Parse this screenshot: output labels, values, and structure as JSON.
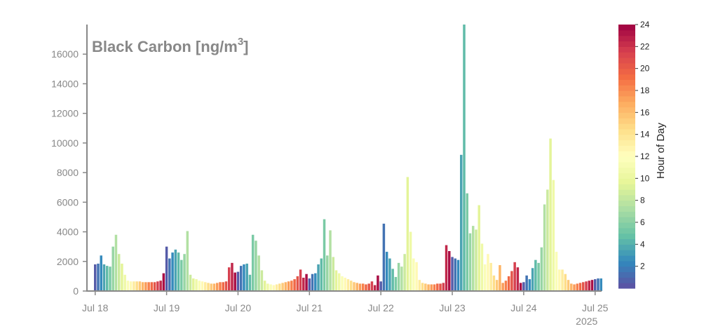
{
  "chart_data": {
    "type": "bar",
    "title": "Black Carbon [ng/m",
    "title_superscript": "3",
    "title_suffix": "]",
    "xlabel": "",
    "ylabel": "",
    "x_tick_labels": [
      "Jul 18",
      "Jul 19",
      "Jul 20",
      "Jul 21",
      "Jul 22",
      "Jul 23",
      "Jul 24",
      "Jul 25"
    ],
    "x_year_label": "2025",
    "x_range": [
      "2025-07-18 00:00",
      "2025-07-25 00:00"
    ],
    "ylim": [
      0,
      18000
    ],
    "y_ticks": [
      0,
      2000,
      4000,
      6000,
      8000,
      10000,
      12000,
      14000,
      16000
    ],
    "grid": false,
    "colorbar": {
      "label": "Hour of Day",
      "range": [
        0,
        24
      ],
      "ticks": [
        2,
        4,
        6,
        8,
        10,
        12,
        14,
        16,
        18,
        20,
        22,
        24
      ],
      "colormap": "Spectral_r"
    },
    "bar_interval_hours": 1,
    "x_start": "2025-07-18 00:00",
    "values": [
      1800,
      1850,
      2400,
      1800,
      1700,
      1650,
      3000,
      3800,
      2500,
      1850,
      1100,
      700,
      650,
      650,
      650,
      650,
      600,
      600,
      600,
      600,
      600,
      650,
      700,
      1200,
      3000,
      2200,
      2600,
      2800,
      2600,
      2100,
      2500,
      4050,
      1100,
      850,
      800,
      700,
      650,
      600,
      550,
      500,
      500,
      550,
      600,
      600,
      650,
      1600,
      1900,
      1250,
      1300,
      1700,
      1800,
      1850,
      1100,
      3800,
      3400,
      2400,
      1400,
      700,
      500,
      450,
      400,
      450,
      500,
      550,
      600,
      650,
      700,
      800,
      1000,
      1450,
      900,
      1150,
      850,
      1150,
      1200,
      1800,
      2200,
      4850,
      2400,
      4100,
      2300,
      1400,
      1200,
      1000,
      900,
      800,
      700,
      600,
      550,
      500,
      500,
      450,
      500,
      650,
      400,
      1050,
      650,
      4550,
      2650,
      2200,
      1500,
      950,
      1900,
      1650,
      2500,
      7700,
      4000,
      2200,
      1950,
      750,
      550,
      500,
      450,
      450,
      450,
      500,
      500,
      550,
      3100,
      2700,
      2300,
      2200,
      2100,
      9200,
      18000,
      6600,
      3900,
      4400,
      4150,
      5800,
      3200,
      1800,
      2500,
      1900,
      1050,
      750,
      1750,
      550,
      700,
      1000,
      1350,
      1950,
      1600,
      550,
      600,
      1050,
      800,
      1550,
      2100,
      1900,
      2950,
      5850,
      6850,
      10300,
      7500,
      2650,
      1450,
      1450,
      1150,
      750,
      500,
      450,
      500,
      550,
      600,
      650,
      700,
      750,
      800,
      850,
      850
    ]
  }
}
